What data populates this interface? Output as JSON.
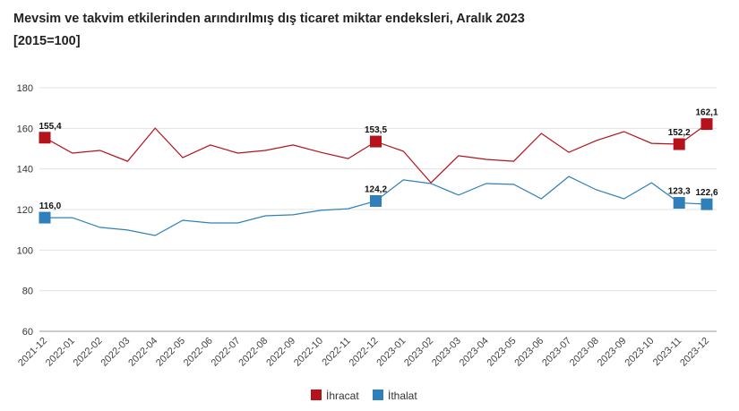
{
  "chart_data": {
    "type": "line",
    "title": "Mevsim ve takvim etkilerinden arındırılmış dış ticaret miktar endeksleri, Aralık 2023",
    "subtitle": "[2015=100]",
    "xlabel": "",
    "ylabel": "",
    "categories": [
      "2021-12",
      "2022-01",
      "2022-02",
      "2022-03",
      "2022-04",
      "2022-05",
      "2022-06",
      "2022-07",
      "2022-08",
      "2022-09",
      "2022-10",
      "2022-11",
      "2022-12",
      "2023-01",
      "2023-02",
      "2023-03",
      "2023-04",
      "2023-05",
      "2023-06",
      "2023-07",
      "2023-08",
      "2023-09",
      "2023-10",
      "2023-11",
      "2023-12"
    ],
    "yticks": [
      60,
      80,
      100,
      120,
      140,
      160,
      180
    ],
    "ylim": [
      60,
      180
    ],
    "grid": true,
    "legend_position": "bottom",
    "series": [
      {
        "name": "İhracat",
        "color": "#b5121b",
        "values": [
          155.4,
          147.8,
          149.1,
          143.8,
          160.1,
          145.6,
          151.8,
          147.8,
          149.1,
          151.8,
          148.2,
          145.1,
          153.5,
          148.7,
          133.2,
          146.5,
          144.7,
          143.8,
          157.5,
          148.2,
          154.0,
          158.4,
          152.6,
          152.2,
          162.1
        ],
        "labels": [
          {
            "index": 0,
            "text": "155,4"
          },
          {
            "index": 12,
            "text": "153,5"
          },
          {
            "index": 23,
            "text": "152,2"
          },
          {
            "index": 24,
            "text": "162,1"
          }
        ]
      },
      {
        "name": "İthalat",
        "color": "#2f80ba",
        "values": [
          116.0,
          116.0,
          111.2,
          109.9,
          107.2,
          114.7,
          113.4,
          113.4,
          116.9,
          117.4,
          119.6,
          120.4,
          124.2,
          134.6,
          132.8,
          127.1,
          132.8,
          132.4,
          125.3,
          136.3,
          129.7,
          125.3,
          133.2,
          123.3,
          122.6
        ],
        "labels": [
          {
            "index": 0,
            "text": "116,0"
          },
          {
            "index": 12,
            "text": "124,2"
          },
          {
            "index": 23,
            "text": "123,3"
          },
          {
            "index": 24,
            "text": "122,6"
          }
        ]
      }
    ]
  }
}
